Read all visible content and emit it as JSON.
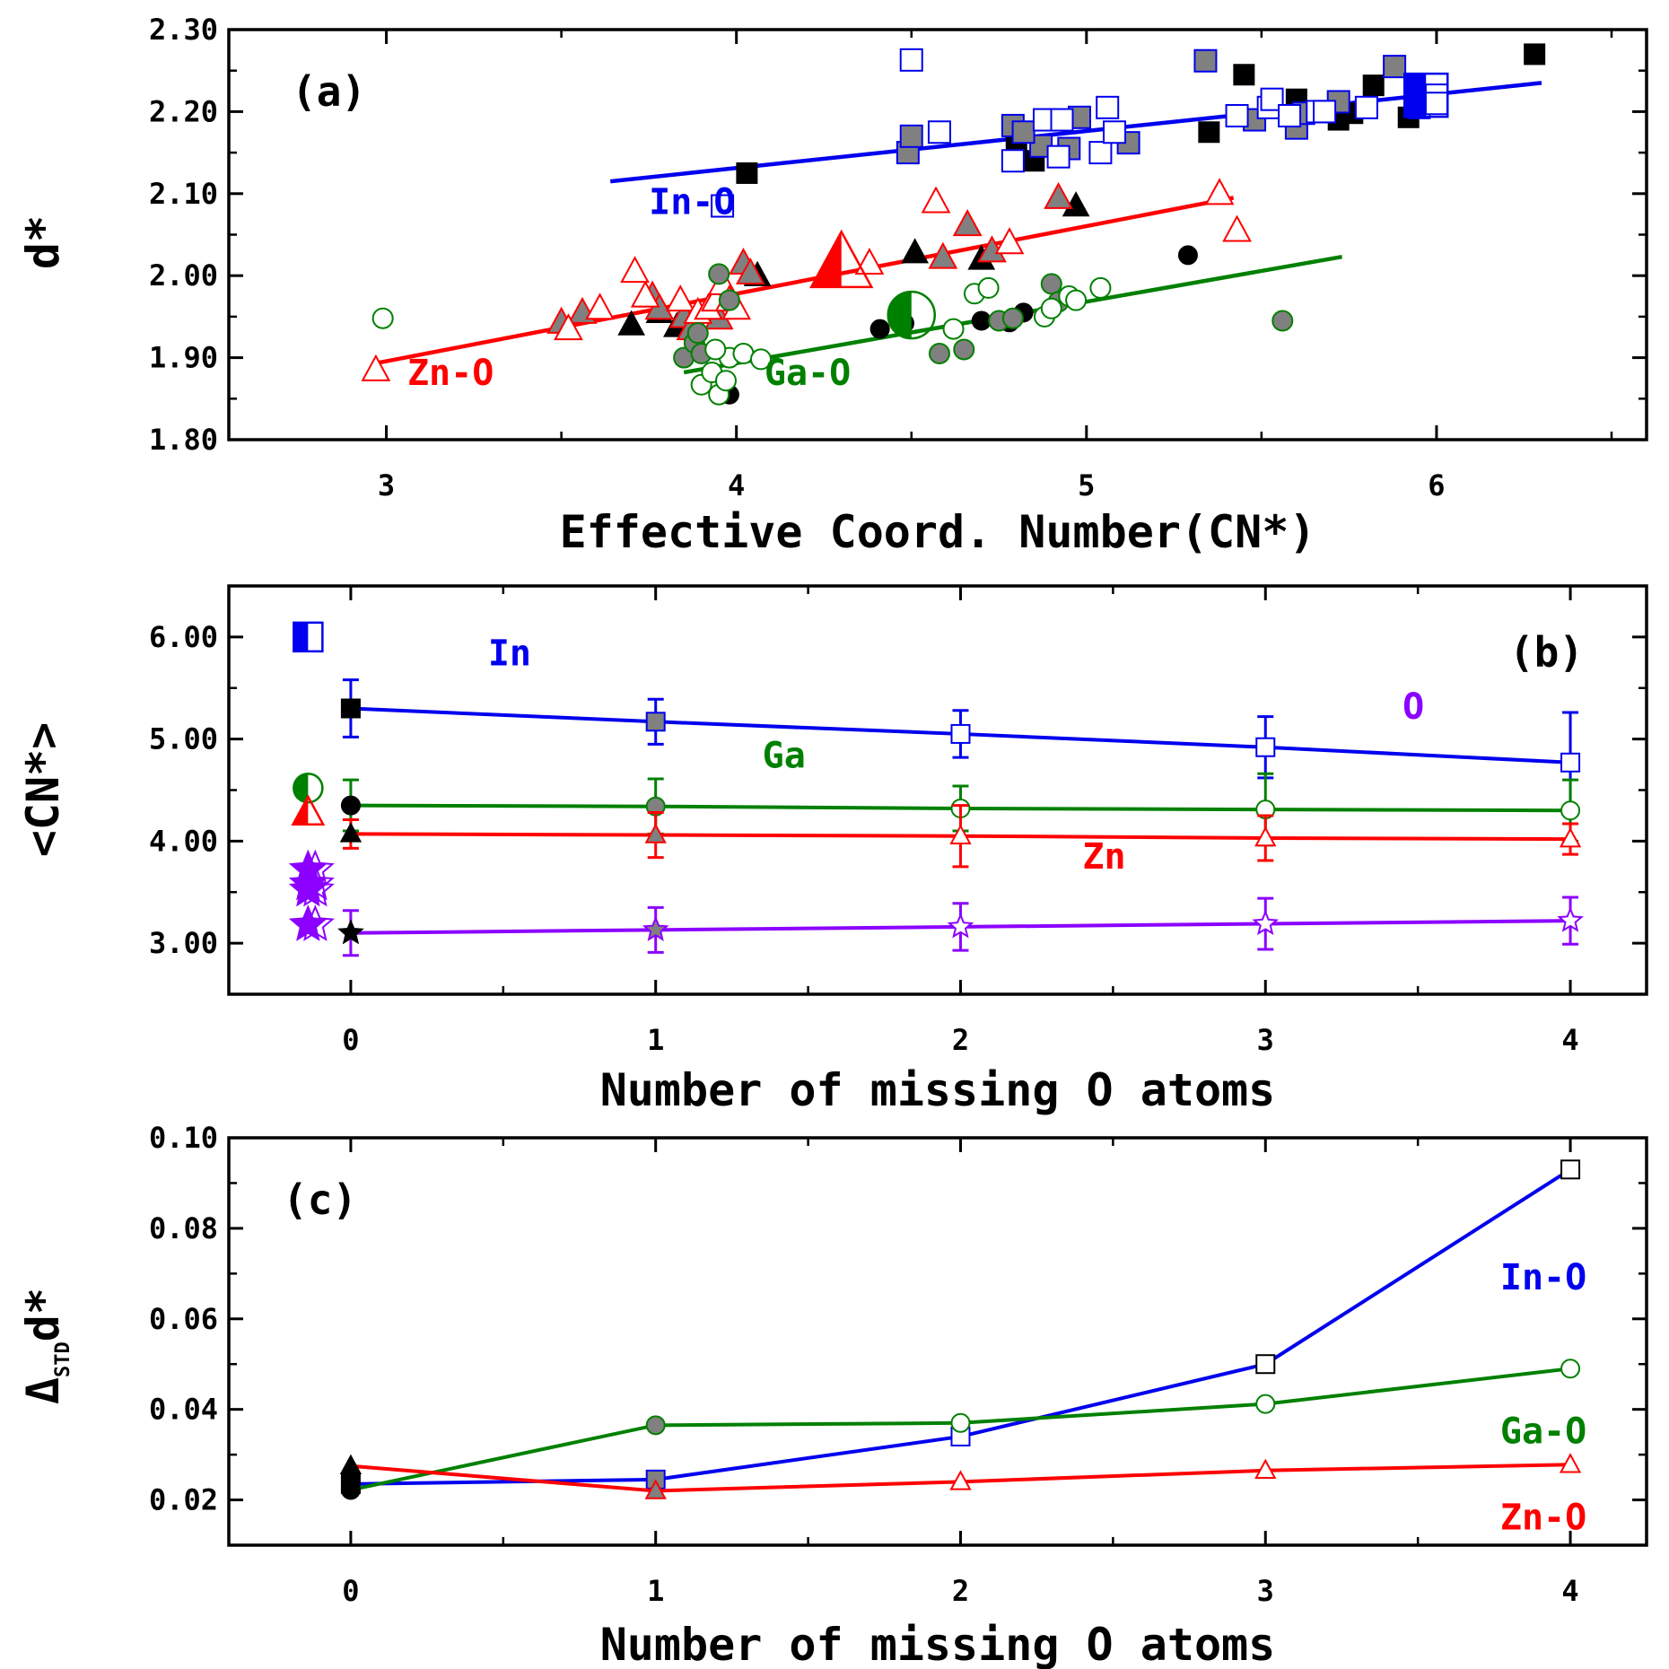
{
  "colors": {
    "in": "#0000ee",
    "ga": "#008000",
    "zn": "#ff0000",
    "o": "#8b00ff",
    "gray": "#808080",
    "black": "#000000"
  },
  "chart_data": [
    {
      "panel": "a",
      "type": "scatter",
      "tag": "(a)",
      "xlabel": "Effective Coord. Number(CN*)",
      "ylabel": "d*",
      "xlim": [
        2.55,
        6.6
      ],
      "ylim": [
        1.8,
        2.3
      ],
      "xticks": [
        {
          "v": 3,
          "label": "3"
        },
        {
          "v": 4,
          "label": "4"
        },
        {
          "v": 5,
          "label": "5"
        },
        {
          "v": 6,
          "label": "6"
        }
      ],
      "yticks": [
        {
          "v": 1.8,
          "label": "1.80"
        },
        {
          "v": 1.9,
          "label": "1.90"
        },
        {
          "v": 2.0,
          "label": "2.00"
        },
        {
          "v": 2.1,
          "label": "2.10"
        },
        {
          "v": 2.2,
          "label": "2.20"
        },
        {
          "v": 2.3,
          "label": "2.30"
        }
      ],
      "labels": [
        {
          "text": "In-O",
          "x": 3.75,
          "y": 2.075,
          "color": "in"
        },
        {
          "text": "Zn-O",
          "x": 3.06,
          "y": 1.867,
          "color": "zn"
        },
        {
          "text": "Ga-O",
          "x": 4.08,
          "y": 1.867,
          "color": "ga"
        }
      ],
      "fits": [
        {
          "name": "In-O",
          "color": "in",
          "x": [
            3.64,
            6.3
          ],
          "y": [
            2.115,
            2.235
          ]
        },
        {
          "name": "Zn-O",
          "color": "zn",
          "x": [
            2.98,
            5.42
          ],
          "y": [
            1.894,
            2.095
          ]
        },
        {
          "name": "Ga-O",
          "color": "ga",
          "x": [
            3.85,
            5.73
          ],
          "y": [
            1.882,
            2.023
          ]
        }
      ],
      "series": [
        {
          "name": "In-O (0 missing)",
          "marker": "square",
          "fill": "black",
          "stroke": "black",
          "size": 11,
          "points": [
            [
              4.03,
              2.125
            ],
            [
              4.85,
              2.14
            ],
            [
              5.35,
              2.175
            ],
            [
              5.45,
              2.245
            ],
            [
              5.6,
              2.215
            ],
            [
              5.72,
              2.19
            ],
            [
              5.76,
              2.198
            ],
            [
              5.82,
              2.232
            ],
            [
              5.92,
              2.193
            ],
            [
              6.28,
              2.27
            ],
            [
              4.8,
              2.165
            ]
          ]
        },
        {
          "name": "In-O (1 missing)",
          "marker": "square",
          "fill": "gray",
          "stroke": "in",
          "size": 12,
          "points": [
            [
              4.49,
              2.15
            ],
            [
              4.5,
              2.17
            ],
            [
              4.79,
              2.183
            ],
            [
              4.87,
              2.158
            ],
            [
              4.95,
              2.155
            ],
            [
              4.98,
              2.193
            ],
            [
              5.12,
              2.162
            ],
            [
              5.34,
              2.262
            ],
            [
              5.48,
              2.19
            ],
            [
              5.6,
              2.18
            ],
            [
              5.62,
              2.198
            ],
            [
              5.72,
              2.212
            ],
            [
              5.88,
              2.255
            ],
            [
              4.82,
              2.175
            ]
          ]
        },
        {
          "name": "In-O (2-4 missing)",
          "marker": "square",
          "fill": "none",
          "stroke": "in",
          "size": 12,
          "points": [
            [
              3.96,
              2.085
            ],
            [
              4.5,
              2.263
            ],
            [
              4.58,
              2.175
            ],
            [
              4.79,
              2.14
            ],
            [
              4.88,
              2.19
            ],
            [
              4.92,
              2.145
            ],
            [
              4.93,
              2.19
            ],
            [
              5.04,
              2.15
            ],
            [
              5.06,
              2.205
            ],
            [
              5.08,
              2.175
            ],
            [
              5.43,
              2.195
            ],
            [
              5.52,
              2.205
            ],
            [
              5.53,
              2.215
            ],
            [
              5.58,
              2.195
            ],
            [
              5.66,
              2.2
            ],
            [
              5.68,
              2.2
            ],
            [
              5.8,
              2.205
            ],
            [
              5.95,
              2.205
            ],
            [
              6.0,
              2.22
            ],
            [
              6.0,
              2.21
            ]
          ]
        },
        {
          "name": "Zn-O (0 missing)",
          "marker": "triangle",
          "fill": "black",
          "stroke": "black",
          "size": 13,
          "points": [
            [
              3.7,
              1.94
            ],
            [
              3.78,
              1.955
            ],
            [
              3.83,
              1.938
            ],
            [
              4.06,
              2.0
            ],
            [
              4.51,
              2.028
            ],
            [
              4.7,
              2.02
            ],
            [
              4.97,
              2.085
            ]
          ]
        },
        {
          "name": "Zn-O (1 missing)",
          "marker": "triangle",
          "fill": "gray",
          "stroke": "zn",
          "size": 14,
          "points": [
            [
              3.5,
              1.943
            ],
            [
              3.56,
              1.955
            ],
            [
              3.76,
              1.975
            ],
            [
              3.78,
              1.96
            ],
            [
              3.85,
              1.95
            ],
            [
              3.87,
              1.935
            ],
            [
              3.95,
              1.948
            ],
            [
              4.02,
              2.015
            ],
            [
              4.04,
              2.003
            ],
            [
              4.59,
              2.022
            ],
            [
              4.66,
              2.062
            ],
            [
              4.73,
              2.03
            ],
            [
              4.92,
              2.095
            ]
          ]
        },
        {
          "name": "Zn-O (2-4 missing)",
          "marker": "triangle",
          "fill": "none",
          "stroke": "zn",
          "size": 14,
          "points": [
            [
              2.97,
              1.885
            ],
            [
              3.52,
              1.935
            ],
            [
              3.61,
              1.96
            ],
            [
              3.71,
              2.005
            ],
            [
              3.74,
              1.975
            ],
            [
              3.84,
              1.97
            ],
            [
              3.89,
              1.955
            ],
            [
              3.92,
              1.96
            ],
            [
              3.94,
              1.97
            ],
            [
              3.96,
              1.99
            ],
            [
              3.98,
              1.97
            ],
            [
              4.0,
              1.96
            ],
            [
              4.38,
              2.015
            ],
            [
              4.57,
              2.09
            ],
            [
              4.78,
              2.04
            ],
            [
              5.38,
              2.1
            ],
            [
              5.43,
              2.055
            ]
          ]
        },
        {
          "name": "Ga-O (0 missing)",
          "marker": "circle",
          "fill": "black",
          "stroke": "black",
          "size": 10,
          "points": [
            [
              3.98,
              1.855
            ],
            [
              4.41,
              1.935
            ],
            [
              4.7,
              1.945
            ],
            [
              4.78,
              1.943
            ],
            [
              4.82,
              1.955
            ],
            [
              5.29,
              2.025
            ],
            [
              4.48,
              1.942
            ]
          ]
        },
        {
          "name": "Ga-O (1 missing)",
          "marker": "circle",
          "fill": "gray",
          "stroke": "ga",
          "size": 11,
          "points": [
            [
              3.85,
              1.9
            ],
            [
              3.88,
              1.918
            ],
            [
              3.9,
              1.905
            ],
            [
              3.95,
              2.002
            ],
            [
              3.98,
              1.97
            ],
            [
              4.58,
              1.905
            ],
            [
              4.65,
              1.91
            ],
            [
              4.75,
              1.945
            ],
            [
              4.79,
              1.948
            ],
            [
              4.9,
              1.99
            ],
            [
              4.92,
              1.968
            ],
            [
              5.56,
              1.945
            ],
            [
              3.89,
              1.93
            ]
          ]
        },
        {
          "name": "Ga-O (2-4 missing)",
          "marker": "circle",
          "fill": "none",
          "stroke": "ga",
          "size": 11,
          "points": [
            [
              2.99,
              1.948
            ],
            [
              3.9,
              1.867
            ],
            [
              3.93,
              1.882
            ],
            [
              3.95,
              1.855
            ],
            [
              3.97,
              1.872
            ],
            [
              3.98,
              1.9
            ],
            [
              4.02,
              1.905
            ],
            [
              4.07,
              1.898
            ],
            [
              4.62,
              1.935
            ],
            [
              4.68,
              1.978
            ],
            [
              4.72,
              1.985
            ],
            [
              4.88,
              1.95
            ],
            [
              4.9,
              1.96
            ],
            [
              4.95,
              1.975
            ],
            [
              4.97,
              1.97
            ],
            [
              5.04,
              1.985
            ],
            [
              3.94,
              1.91
            ]
          ]
        }
      ],
      "large_markers": [
        {
          "marker": "square",
          "x": 5.97,
          "y": 2.22,
          "color": "in",
          "size": 24
        },
        {
          "marker": "triangle",
          "x": 4.3,
          "y": 2.015,
          "color": "zn",
          "size": 32
        },
        {
          "marker": "circle",
          "x": 4.5,
          "y": 1.952,
          "color": "ga",
          "size": 26
        }
      ]
    },
    {
      "panel": "b",
      "type": "line",
      "tag": "(b)",
      "xlabel": "Number of missing O atoms",
      "ylabel": "<CN*>",
      "xlim": [
        -0.4,
        4.25
      ],
      "ylim": [
        2.5,
        6.5
      ],
      "xticks": [
        {
          "v": 0,
          "label": "0"
        },
        {
          "v": 1,
          "label": "1"
        },
        {
          "v": 2,
          "label": "2"
        },
        {
          "v": 3,
          "label": "3"
        },
        {
          "v": 4,
          "label": "4"
        }
      ],
      "yticks": [
        {
          "v": 3,
          "label": "3.00"
        },
        {
          "v": 4,
          "label": "4.00"
        },
        {
          "v": 5,
          "label": "5.00"
        },
        {
          "v": 6,
          "label": "6.00"
        }
      ],
      "x": [
        0,
        1,
        2,
        3,
        4
      ],
      "series": [
        {
          "name": "In",
          "color": "in",
          "marker": "square",
          "values": [
            5.3,
            5.17,
            5.05,
            4.92,
            4.77
          ],
          "err": [
            0.28,
            0.22,
            0.23,
            0.3,
            0.49
          ],
          "fills": [
            "black",
            "gray",
            "none",
            "none",
            "none"
          ]
        },
        {
          "name": "Ga",
          "color": "ga",
          "marker": "circle",
          "values": [
            4.35,
            4.34,
            4.32,
            4.31,
            4.3
          ],
          "err": [
            0.25,
            0.27,
            0.22,
            0.35,
            0.3
          ],
          "fills": [
            "black",
            "gray",
            "none",
            "none",
            "none"
          ]
        },
        {
          "name": "Zn",
          "color": "zn",
          "marker": "triangle",
          "values": [
            4.07,
            4.06,
            4.05,
            4.03,
            4.02
          ],
          "err": [
            0.14,
            0.22,
            0.3,
            0.22,
            0.15
          ],
          "fills": [
            "black",
            "gray",
            "none",
            "none",
            "none"
          ]
        },
        {
          "name": "O",
          "color": "o",
          "marker": "star",
          "values": [
            3.1,
            3.13,
            3.16,
            3.19,
            3.22
          ],
          "err": [
            0.22,
            0.22,
            0.23,
            0.25,
            0.23
          ],
          "fills": [
            "black",
            "gray",
            "none",
            "none",
            "none"
          ]
        }
      ],
      "labels": [
        {
          "text": "In",
          "x": 0.45,
          "y": 5.72,
          "color": "in"
        },
        {
          "text": "Ga",
          "x": 1.35,
          "y": 4.72,
          "color": "ga"
        },
        {
          "text": "Zn",
          "x": 2.4,
          "y": 3.73,
          "color": "zn"
        },
        {
          "text": "O",
          "x": 3.45,
          "y": 5.2,
          "color": "o"
        }
      ],
      "reference_markers": [
        {
          "marker": "square",
          "x": -0.14,
          "y": 6.0,
          "color": "in"
        },
        {
          "marker": "circle",
          "x": -0.14,
          "y": 4.52,
          "color": "ga"
        },
        {
          "marker": "triangle",
          "x": -0.14,
          "y": 4.28,
          "color": "zn"
        },
        {
          "marker": "star",
          "x": -0.14,
          "y": 3.72,
          "color": "o"
        },
        {
          "marker": "star",
          "x": -0.14,
          "y": 3.58,
          "color": "o"
        },
        {
          "marker": "star",
          "x": -0.14,
          "y": 3.52,
          "color": "o"
        },
        {
          "marker": "star",
          "x": -0.14,
          "y": 3.18,
          "color": "o"
        }
      ]
    },
    {
      "panel": "c",
      "type": "line",
      "tag": "(c)",
      "xlabel": "Number of missing O atoms",
      "ylabel": "Δ",
      "ylabel_sub": "STD",
      "ylabel_tail": "d*",
      "xlim": [
        -0.4,
        4.25
      ],
      "ylim": [
        0.01,
        0.1
      ],
      "xticks": [
        {
          "v": 0,
          "label": "0"
        },
        {
          "v": 1,
          "label": "1"
        },
        {
          "v": 2,
          "label": "2"
        },
        {
          "v": 3,
          "label": "3"
        },
        {
          "v": 4,
          "label": "4"
        }
      ],
      "yticks": [
        {
          "v": 0.02,
          "label": "0.02"
        },
        {
          "v": 0.04,
          "label": "0.04"
        },
        {
          "v": 0.06,
          "label": "0.06"
        },
        {
          "v": 0.08,
          "label": "0.08"
        },
        {
          "v": 0.1,
          "label": "0.10"
        }
      ],
      "x": [
        0,
        1,
        2,
        3,
        4
      ],
      "series": [
        {
          "name": "In-O",
          "color": "in",
          "marker": "square",
          "values": [
            0.0235,
            0.0245,
            0.034,
            0.05,
            0.093
          ],
          "fills": [
            "black",
            "gray",
            "none",
            "none",
            "none"
          ]
        },
        {
          "name": "Ga-O",
          "color": "ga",
          "marker": "circle",
          "values": [
            0.0222,
            0.0365,
            0.037,
            0.0412,
            0.049
          ],
          "fills": [
            "black",
            "gray",
            "none",
            "none",
            "none"
          ]
        },
        {
          "name": "Zn-O",
          "color": "zn",
          "marker": "triangle",
          "values": [
            0.0275,
            0.022,
            0.024,
            0.0265,
            0.0278
          ],
          "fills": [
            "black",
            "gray",
            "none",
            "none",
            "none"
          ]
        }
      ],
      "labels": [
        {
          "text": "In-O",
          "x": 3.77,
          "y": 0.0665,
          "color": "in"
        },
        {
          "text": "Ga-O",
          "x": 3.77,
          "y": 0.0325,
          "color": "ga"
        },
        {
          "text": "Zn-O",
          "x": 3.77,
          "y": 0.0135,
          "color": "zn"
        }
      ]
    }
  ]
}
